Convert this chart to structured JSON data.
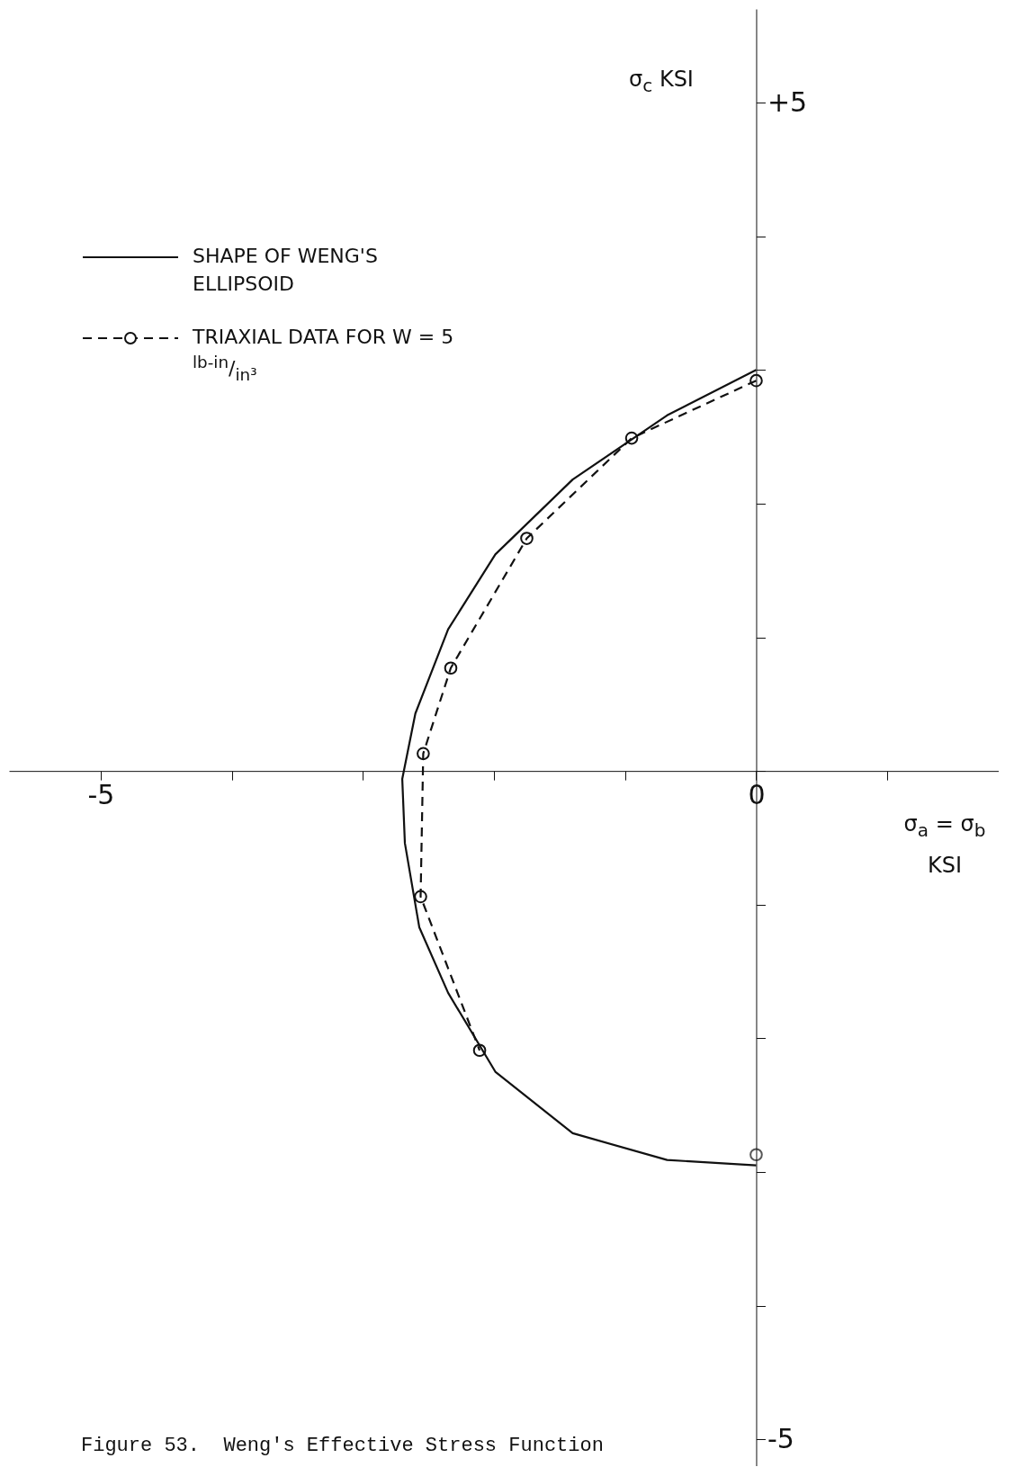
{
  "chart_data": {
    "type": "line",
    "title": "Figure 53.  Weng's Effective Stress Function",
    "xlabel": "σ$_{a}$ = σ$_{b}$ KSI",
    "ylabel": "σ$_{c}$ KSI",
    "xlim": [
      -5.7,
      1.85
    ],
    "ylim": [
      -5.2,
      5.7
    ],
    "xticks": [
      {
        "value": -5,
        "label": "-5"
      },
      {
        "value": -4,
        "label": null
      },
      {
        "value": -3,
        "label": null
      },
      {
        "value": -2,
        "label": null
      },
      {
        "value": -1,
        "label": null
      },
      0,
      {
        "value": 1,
        "label": null
      }
    ],
    "yticks": [
      {
        "value": -5,
        "label": "-5"
      },
      {
        "value": -4,
        "label": null
      },
      {
        "value": -3,
        "label": null
      },
      {
        "value": -2,
        "label": null
      },
      {
        "value": -1,
        "label": null
      },
      {
        "value": 0,
        "label": null
      },
      {
        "value": 1,
        "label": null
      },
      {
        "value": 2,
        "label": null
      },
      {
        "value": 3,
        "label": null
      },
      {
        "value": 4,
        "label": null
      },
      {
        "value": 5,
        "label": "+5"
      }
    ],
    "grid": false,
    "legend": "top left",
    "series": [
      {
        "name": "SHAPE OF WENG'S ELLIPSOID",
        "type": "line",
        "color": "#111111",
        "line_style": "solid",
        "marker": "none",
        "x": [
          0,
          -0.68,
          -1.4,
          -1.99,
          -2.35,
          -2.6,
          -2.7,
          -2.68,
          -2.57,
          -2.35,
          -1.99,
          -1.4,
          -0.68,
          0
        ],
        "values": [
          3.0,
          2.66,
          2.18,
          1.62,
          1.06,
          0.43,
          -0.06,
          -0.54,
          -1.17,
          -1.66,
          -2.25,
          -2.71,
          -2.91,
          -2.95
        ]
      },
      {
        "name": "TRIAXIAL DATA FOR W = 5 $^{lb-in}$/$_{in³}$",
        "type": "line",
        "color": "#111111",
        "line_style": "dashed",
        "marker": "circle",
        "x": [
          0,
          -0.95,
          -1.75,
          -2.33,
          -2.54,
          -2.56,
          -2.11
        ],
        "values": [
          2.92,
          2.49,
          1.74,
          0.77,
          0.13,
          -0.94,
          -2.09
        ]
      },
      {
        "type": "scatter",
        "color": "#111111",
        "marker": "circle",
        "x": [
          0
        ],
        "values": [
          -2.87
        ]
      }
    ]
  }
}
